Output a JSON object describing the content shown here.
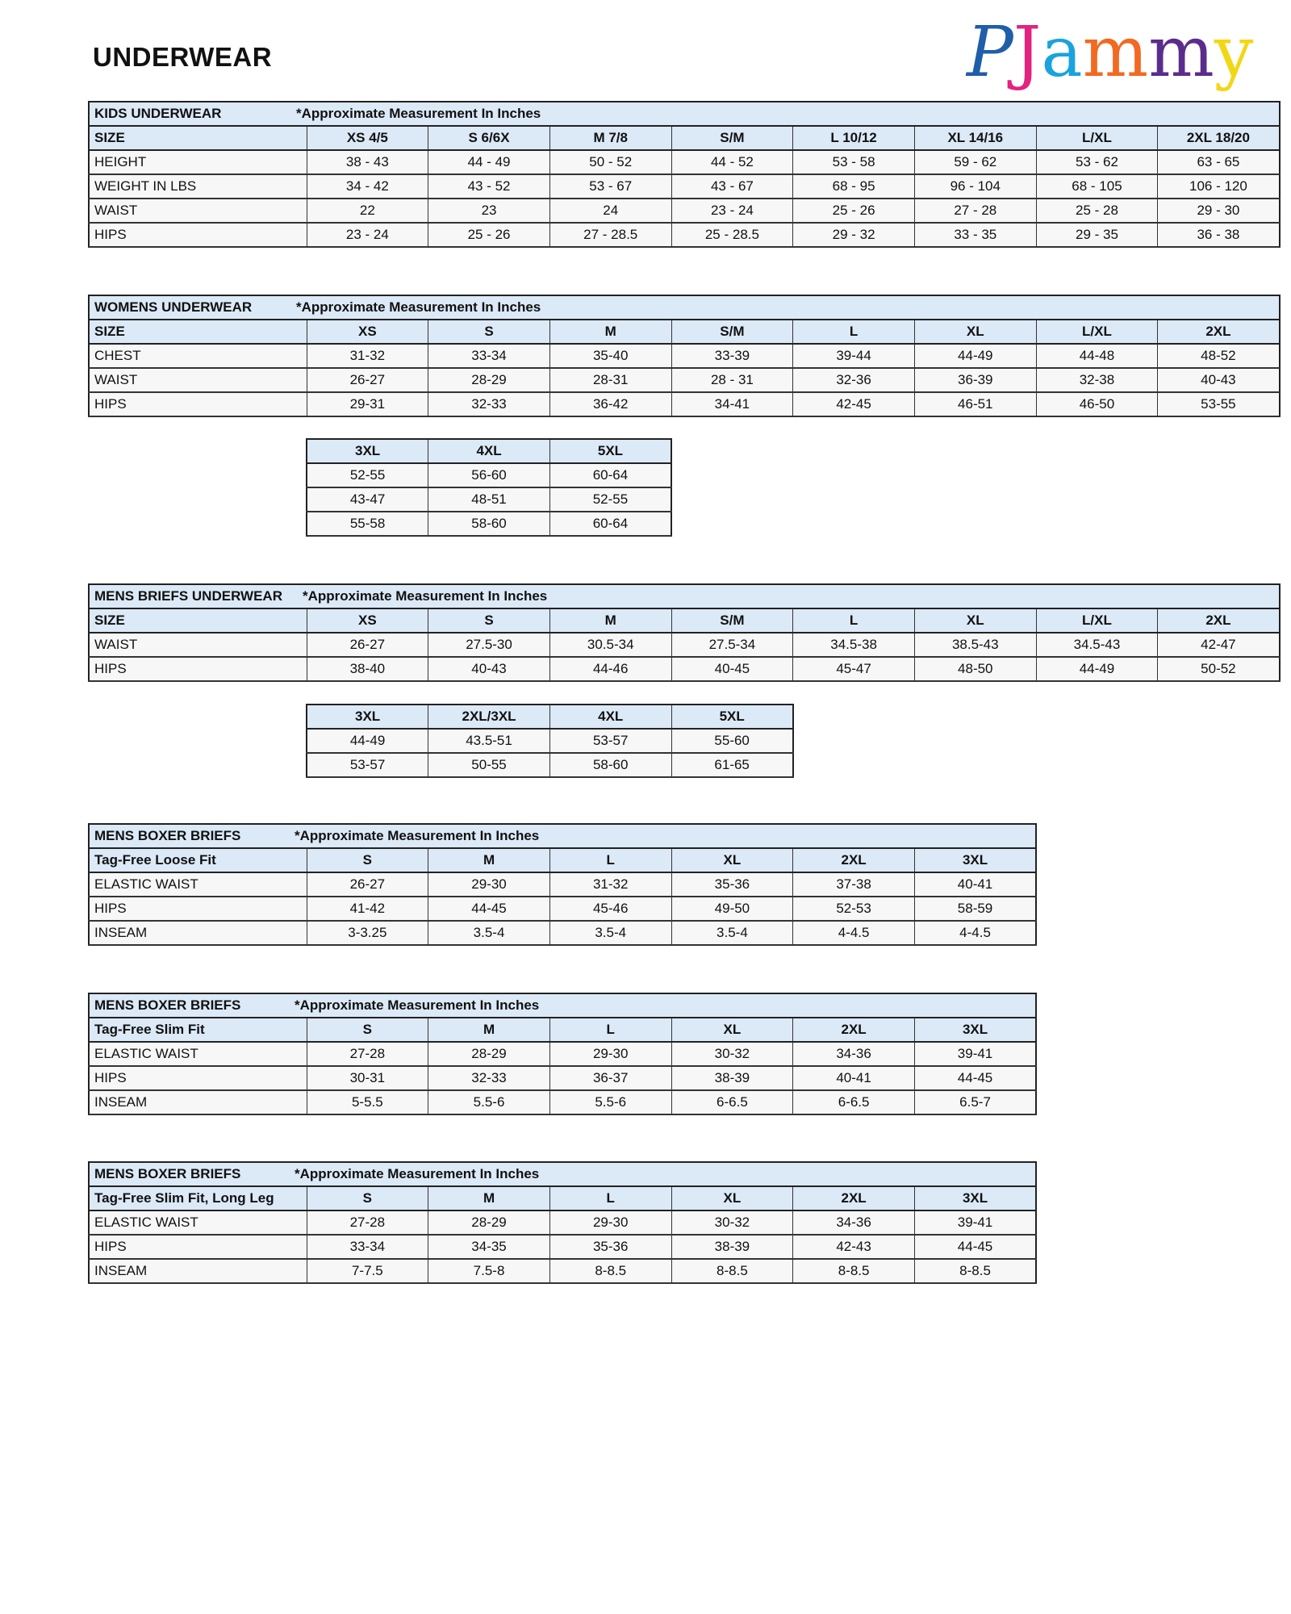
{
  "page_title": "UNDERWEAR",
  "logo": {
    "text": "PJammy",
    "letters": [
      {
        "ch": "P",
        "color": "#1f5ea8"
      },
      {
        "ch": "J",
        "color": "#e2237f"
      },
      {
        "ch": "a",
        "color": "#1aa3de"
      },
      {
        "ch": "m",
        "color": "#f26a21"
      },
      {
        "ch": "m",
        "color": "#5a2d8c"
      },
      {
        "ch": "y",
        "color": "#f2d714"
      }
    ]
  },
  "colors": {
    "header_bg": "#dce9f7",
    "cell_bg": "#f7f7f7",
    "border": "#222222"
  },
  "tables": [
    {
      "id": "kids",
      "title": "KIDS UNDERWEAR",
      "note": "*Approximate Measurement In Inches",
      "header": [
        "SIZE",
        "XS 4/5",
        "S 6/6X",
        "M 7/8",
        "S/M",
        "L 10/12",
        "XL 14/16",
        "L/XL",
        "2XL 18/20"
      ],
      "rows": [
        {
          "label": "HEIGHT",
          "values": [
            "38 - 43",
            "44 - 49",
            "50 - 52",
            "44 - 52",
            "53 - 58",
            "59 - 62",
            "53 - 62",
            "63 - 65"
          ]
        },
        {
          "label": "WEIGHT IN LBS",
          "values": [
            "34 - 42",
            "43 - 52",
            "53 - 67",
            "43 - 67",
            "68 - 95",
            "96 - 104",
            "68 - 105",
            "106 - 120"
          ]
        },
        {
          "label": "WAIST",
          "values": [
            "22",
            "23",
            "24",
            "23 - 24",
            "25 - 26",
            "27 - 28",
            "25 - 28",
            "29 - 30"
          ]
        },
        {
          "label": "HIPS",
          "values": [
            "23 - 24",
            "25 - 26",
            "27 - 28.5",
            "25 - 28.5",
            "29 - 32",
            "33 - 35",
            "29 - 35",
            "36 - 38"
          ]
        }
      ]
    },
    {
      "id": "womens",
      "title": "WOMENS UNDERWEAR",
      "note": "*Approximate Measurement In Inches",
      "header": [
        "SIZE",
        "XS",
        "S",
        "M",
        "S/M",
        "L",
        "XL",
        "L/XL",
        "2XL"
      ],
      "rows": [
        {
          "label": "CHEST",
          "values": [
            "31-32",
            "33-34",
            "35-40",
            "33-39",
            "39-44",
            "44-49",
            "44-48",
            "48-52"
          ]
        },
        {
          "label": "WAIST",
          "values": [
            "26-27",
            "28-29",
            "28-31",
            "28 - 31",
            "32-36",
            "36-39",
            "32-38",
            "40-43"
          ]
        },
        {
          "label": "HIPS",
          "values": [
            "29-31",
            "32-33",
            "36-42",
            "34-41",
            "42-45",
            "46-51",
            "46-50",
            "53-55"
          ]
        }
      ],
      "extension": {
        "header": [
          "3XL",
          "4XL",
          "5XL"
        ],
        "rows": [
          [
            "52-55",
            "56-60",
            "60-64"
          ],
          [
            "43-47",
            "48-51",
            "52-55"
          ],
          [
            "55-58",
            "58-60",
            "60-64"
          ]
        ]
      }
    },
    {
      "id": "mens-briefs",
      "title": "MENS BRIEFS UNDERWEAR",
      "note": "*Approximate Measurement In Inches",
      "header": [
        "SIZE",
        "XS",
        "S",
        "M",
        "S/M",
        "L",
        "XL",
        "L/XL",
        "2XL"
      ],
      "rows": [
        {
          "label": "WAIST",
          "values": [
            "26-27",
            "27.5-30",
            "30.5-34",
            "27.5-34",
            "34.5-38",
            "38.5-43",
            "34.5-43",
            "42-47"
          ]
        },
        {
          "label": "HIPS",
          "values": [
            "38-40",
            "40-43",
            "44-46",
            "40-45",
            "45-47",
            "48-50",
            "44-49",
            "50-52"
          ]
        }
      ],
      "extension": {
        "header": [
          "3XL",
          "2XL/3XL",
          "4XL",
          "5XL"
        ],
        "rows": [
          [
            "44-49",
            "43.5-51",
            "53-57",
            "55-60"
          ],
          [
            "53-57",
            "50-55",
            "58-60",
            "61-65"
          ]
        ]
      }
    },
    {
      "id": "boxer-loose",
      "title": "MENS BOXER BRIEFS",
      "note": "*Approximate Measurement In Inches",
      "header": [
        "Tag-Free Loose Fit",
        "S",
        "M",
        "L",
        "XL",
        "2XL",
        "3XL"
      ],
      "rows": [
        {
          "label": "ELASTIC WAIST",
          "values": [
            "26-27",
            "29-30",
            "31-32",
            "35-36",
            "37-38",
            "40-41"
          ]
        },
        {
          "label": "HIPS",
          "values": [
            "41-42",
            "44-45",
            "45-46",
            "49-50",
            "52-53",
            "58-59"
          ]
        },
        {
          "label": "INSEAM",
          "values": [
            "3-3.25",
            "3.5-4",
            "3.5-4",
            "3.5-4",
            "4-4.5",
            "4-4.5"
          ]
        }
      ]
    },
    {
      "id": "boxer-slim",
      "title": "MENS BOXER BRIEFS",
      "note": "*Approximate Measurement In Inches",
      "header": [
        "Tag-Free Slim Fit",
        "S",
        "M",
        "L",
        "XL",
        "2XL",
        "3XL"
      ],
      "rows": [
        {
          "label": "ELASTIC WAIST",
          "values": [
            "27-28",
            "28-29",
            "29-30",
            "30-32",
            "34-36",
            "39-41"
          ]
        },
        {
          "label": "HIPS",
          "values": [
            "30-31",
            "32-33",
            "36-37",
            "38-39",
            "40-41",
            "44-45"
          ]
        },
        {
          "label": "INSEAM",
          "values": [
            "5-5.5",
            "5.5-6",
            "5.5-6",
            "6-6.5",
            "6-6.5",
            "6.5-7"
          ]
        }
      ]
    },
    {
      "id": "boxer-long",
      "title": "MENS BOXER BRIEFS",
      "note": "*Approximate Measurement In Inches",
      "header": [
        "Tag-Free Slim Fit, Long Leg",
        "S",
        "M",
        "L",
        "XL",
        "2XL",
        "3XL"
      ],
      "rows": [
        {
          "label": "ELASTIC WAIST",
          "values": [
            "27-28",
            "28-29",
            "29-30",
            "30-32",
            "34-36",
            "39-41"
          ]
        },
        {
          "label": "HIPS",
          "values": [
            "33-34",
            "34-35",
            "35-36",
            "38-39",
            "42-43",
            "44-45"
          ]
        },
        {
          "label": "INSEAM",
          "values": [
            "7-7.5",
            "7.5-8",
            "8-8.5",
            "8-8.5",
            "8-8.5",
            "8-8.5"
          ]
        }
      ]
    }
  ]
}
